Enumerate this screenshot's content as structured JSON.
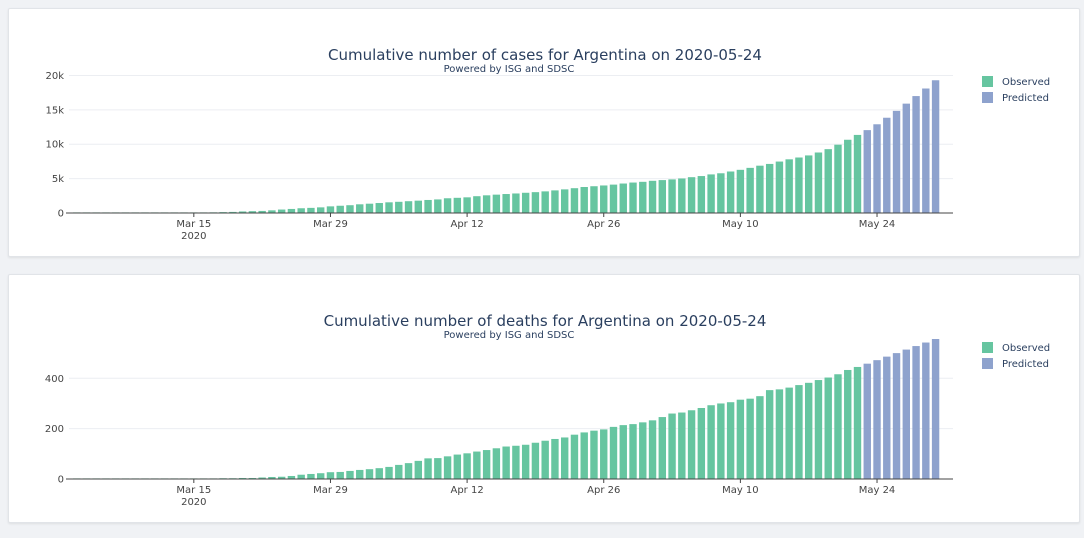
{
  "colors": {
    "observed": "#66c5a0",
    "predicted": "#8ea2cd"
  },
  "chart_data": [
    {
      "type": "bar",
      "title": "Cumulative number of cases for Argentina on 2020-05-24",
      "subtitle": "Powered by ISG and SDSC",
      "xlabel": "",
      "ylabel": "",
      "start_date": "2020-03-03",
      "x_ticks": [
        {
          "day": 12,
          "label": "Mar 15",
          "sub": "2020"
        },
        {
          "day": 26,
          "label": "Mar 29",
          "sub": ""
        },
        {
          "day": 40,
          "label": "Apr 12",
          "sub": ""
        },
        {
          "day": 54,
          "label": "Apr 26",
          "sub": ""
        },
        {
          "day": 68,
          "label": "May 10",
          "sub": ""
        },
        {
          "day": 82,
          "label": "May 24",
          "sub": ""
        }
      ],
      "y_ticks": [
        {
          "value": 0,
          "label": "0"
        },
        {
          "value": 5000,
          "label": "5k"
        },
        {
          "value": 10000,
          "label": "10k"
        },
        {
          "value": 15000,
          "label": "15k"
        },
        {
          "value": 20000,
          "label": "20k"
        }
      ],
      "ylim": [
        0,
        20500
      ],
      "legend": {
        "position": "top-right",
        "entries": [
          "Observed",
          "Predicted"
        ]
      },
      "series": [
        {
          "name": "Observed",
          "values": [
            1,
            1,
            2,
            8,
            12,
            17,
            19,
            21,
            31,
            34,
            45,
            56,
            65,
            79,
            97,
            128,
            158,
            225,
            266,
            301,
            387,
            502,
            589,
            690,
            745,
            820,
            966,
            1054,
            1133,
            1265,
            1353,
            1451,
            1554,
            1628,
            1715,
            1795,
            1894,
            1975,
            2142,
            2208,
            2277,
            2443,
            2571,
            2669,
            2758,
            2839,
            2941,
            3031,
            3144,
            3288,
            3435,
            3607,
            3780,
            3892,
            4003,
            4127,
            4285,
            4428,
            4532,
            4681,
            4783,
            4887,
            5020,
            5208,
            5371,
            5611,
            5776,
            6034,
            6278,
            6563,
            6879,
            7134,
            7479,
            7805,
            8068,
            8371,
            8796,
            9283,
            9931,
            10649,
            11353
          ]
        },
        {
          "name": "Predicted",
          "values": [
            12050,
            12900,
            13850,
            14850,
            15900,
            17000,
            18100,
            19300
          ]
        }
      ]
    },
    {
      "type": "bar",
      "title": "Cumulative number of deaths for Argentina on 2020-05-24",
      "subtitle": "Powered by ISG and SDSC",
      "xlabel": "",
      "ylabel": "",
      "start_date": "2020-03-03",
      "x_ticks": [
        {
          "day": 12,
          "label": "Mar 15",
          "sub": "2020"
        },
        {
          "day": 26,
          "label": "Mar 29",
          "sub": ""
        },
        {
          "day": 40,
          "label": "Apr 12",
          "sub": ""
        },
        {
          "day": 54,
          "label": "Apr 26",
          "sub": ""
        },
        {
          "day": 68,
          "label": "May 10",
          "sub": ""
        },
        {
          "day": 82,
          "label": "May 24",
          "sub": ""
        }
      ],
      "y_ticks": [
        {
          "value": 0,
          "label": "0"
        },
        {
          "value": 200,
          "label": "200"
        },
        {
          "value": 400,
          "label": "400"
        }
      ],
      "ylim": [
        0,
        560
      ],
      "legend": {
        "position": "top-right",
        "entries": [
          "Observed",
          "Predicted"
        ]
      },
      "series": [
        {
          "name": "Observed",
          "values": [
            0,
            0,
            0,
            0,
            1,
            1,
            1,
            1,
            2,
            2,
            2,
            2,
            2,
            2,
            2,
            3,
            3,
            4,
            4,
            6,
            8,
            9,
            12,
            17,
            20,
            23,
            27,
            28,
            32,
            36,
            39,
            43,
            48,
            56,
            63,
            72,
            82,
            83,
            90,
            97,
            102,
            109,
            115,
            122,
            129,
            132,
            136,
            144,
            152,
            159,
            165,
            176,
            185,
            192,
            197,
            207,
            214,
            218,
            225,
            233,
            246,
            260,
            264,
            273,
            282,
            293,
            300,
            305,
            315,
            319,
            329,
            353,
            356,
            363,
            373,
            382,
            393,
            403,
            416,
            433,
            445
          ]
        },
        {
          "name": "Predicted",
          "values": [
            458,
            472,
            486,
            500,
            514,
            528,
            542,
            556
          ]
        }
      ]
    }
  ]
}
